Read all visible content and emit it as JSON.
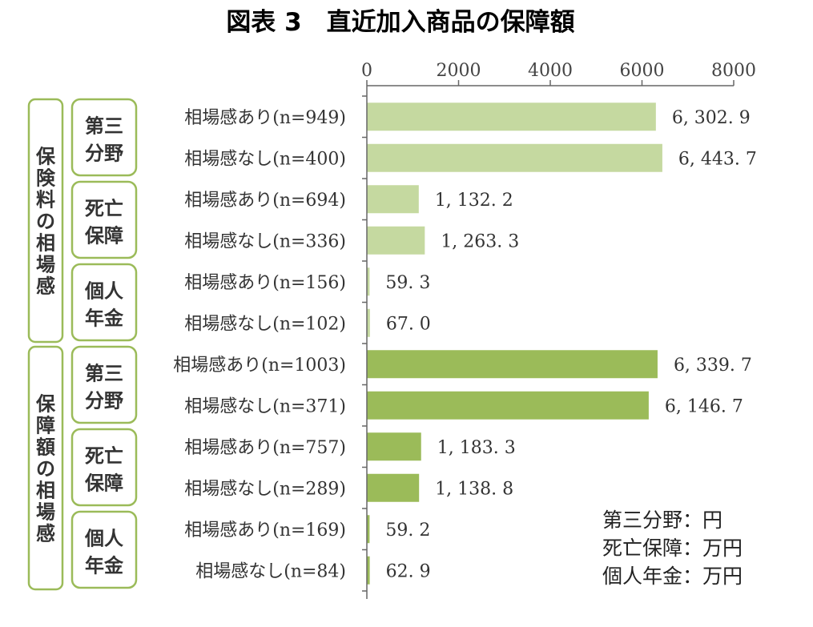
{
  "chart_data": {
    "type": "bar",
    "orientation": "horizontal",
    "title": "図表 3　直近加入商品の保障額",
    "xlim": [
      0,
      8000
    ],
    "xticks": [
      "0",
      "2000",
      "4000",
      "6000",
      "8000"
    ],
    "categories": [
      "相場感あり(n=949)",
      "相場感なし(n=400)",
      "相場感あり(n=694)",
      "相場感なし(n=336)",
      "相場感あり(n=156)",
      "相場感なし(n=102)",
      "相場感あり(n=1003)",
      "相場感なし(n=371)",
      "相場感あり(n=757)",
      "相場感なし(n=289)",
      "相場感あり(n=169)",
      "相場感なし(n=84)"
    ],
    "values": [
      6302.9,
      6443.7,
      1132.2,
      1263.3,
      59.3,
      67.0,
      6339.7,
      6146.7,
      1183.3,
      1138.8,
      59.2,
      62.9
    ],
    "value_labels": [
      "6, 302. 9",
      "6, 443. 7",
      "1, 132. 2",
      "1, 263. 3",
      "59. 3",
      "67. 0",
      "6, 339. 7",
      "6, 146. 7",
      "1, 183. 3",
      "1, 138. 8",
      "59. 2",
      "62. 9"
    ],
    "bar_colors": [
      "#c5d9a0",
      "#c5d9a0",
      "#c5d9a0",
      "#c5d9a0",
      "#c5d9a0",
      "#c5d9a0",
      "#9bbb59",
      "#9bbb59",
      "#9bbb59",
      "#9bbb59",
      "#9bbb59",
      "#9bbb59"
    ],
    "groups": [
      {
        "label": "保険料の相場感",
        "rows": [
          0,
          5
        ]
      },
      {
        "label": "保障額の相場感",
        "rows": [
          6,
          11
        ]
      }
    ],
    "subgroups": [
      {
        "line1": "第三",
        "line2": "分野",
        "rows": [
          0,
          1
        ]
      },
      {
        "line1": "死亡",
        "line2": "保障",
        "rows": [
          2,
          3
        ]
      },
      {
        "line1": "個人",
        "line2": "年金",
        "rows": [
          4,
          5
        ]
      },
      {
        "line1": "第三",
        "line2": "分野",
        "rows": [
          6,
          7
        ]
      },
      {
        "line1": "死亡",
        "line2": "保障",
        "rows": [
          8,
          9
        ]
      },
      {
        "line1": "個人",
        "line2": "年金",
        "rows": [
          10,
          11
        ]
      }
    ],
    "units": [
      "第三分野：円",
      "死亡保障：万円",
      "個人年金：万円"
    ],
    "grid": false,
    "box_border_color": "#9bbb59"
  }
}
